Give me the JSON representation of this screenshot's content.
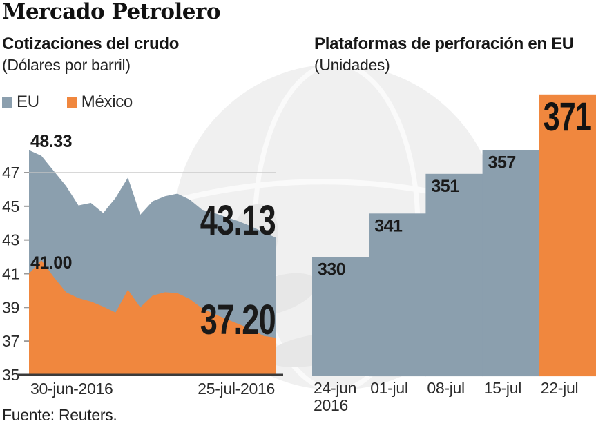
{
  "page": {
    "title": "Mercado Petrolero",
    "source": "Fuente: Reuters."
  },
  "colors": {
    "eu": "#8B9FAE",
    "mexico": "#F0873E",
    "label_dark": "#1A1A1A",
    "axis_text": "#2B2B2B",
    "gridline": "#C6C6C6",
    "baseline": "#3B3B3B",
    "tick": "#9A9A9A",
    "watermark_fill": "#F0F0F0",
    "watermark_line": "#FAFAFA",
    "watermark_shade": "#E7E7E7"
  },
  "chart_data": [
    {
      "type": "area",
      "title": "Cotizaciones del crudo",
      "subtitle": "(Dólares por barril)",
      "legend_position": "top-left",
      "x_ticks": [
        "30-jun-2016",
        "25-jul-2016"
      ],
      "y_ticks": [
        35,
        37,
        39,
        41,
        43,
        45,
        47
      ],
      "ylim": [
        35,
        48.33
      ],
      "gridline_at": 47,
      "grid": "single-line-at-47",
      "series": [
        {
          "name": "EU",
          "color": "#8B9FAE",
          "first_label": "48.33",
          "last_label": "43.13",
          "values": [
            48.33,
            48.0,
            47.1,
            46.2,
            45.05,
            45.2,
            44.6,
            45.5,
            46.7,
            44.5,
            45.3,
            45.6,
            45.75,
            45.4,
            44.8,
            44.6,
            44.35,
            44.1,
            43.8,
            43.45,
            43.13
          ]
        },
        {
          "name": "México",
          "color": "#F0873E",
          "first_label": "41.00",
          "last_label": "37.20",
          "values": [
            41.0,
            41.8,
            40.8,
            39.9,
            39.55,
            39.35,
            39.05,
            38.7,
            40.05,
            39.0,
            39.7,
            39.9,
            39.85,
            39.5,
            38.95,
            38.6,
            38.3,
            38.0,
            37.7,
            37.3,
            37.2
          ]
        }
      ]
    },
    {
      "type": "bar",
      "title": "Plataformas de perforación en EU",
      "subtitle": "(Unidades)",
      "categories": [
        "24-jun 2016",
        "01-jul",
        "08-jul",
        "15-jul",
        "22-jul"
      ],
      "values": [
        330,
        341,
        351,
        357,
        371
      ],
      "bar_colors": [
        "#8B9FAE",
        "#8B9FAE",
        "#8B9FAE",
        "#8B9FAE",
        "#F0873E"
      ],
      "ylim": [
        300,
        375
      ],
      "grid": "off"
    }
  ]
}
